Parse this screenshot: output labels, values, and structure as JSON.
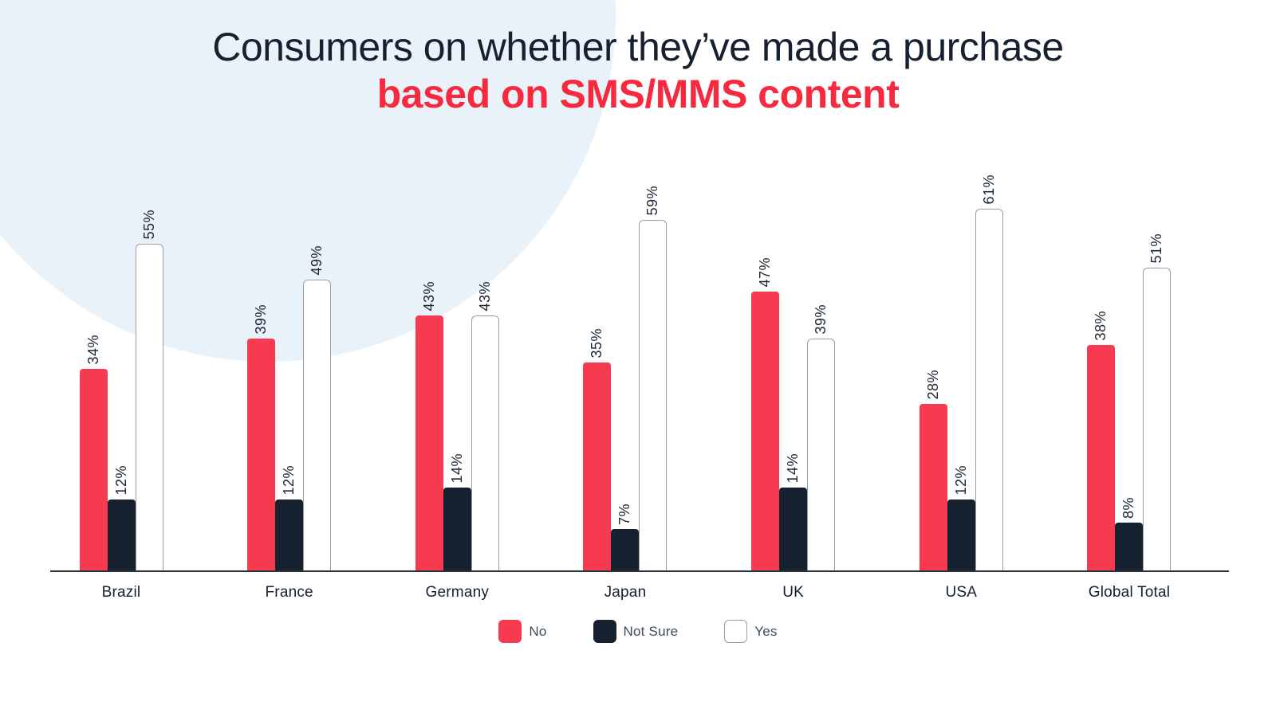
{
  "page": {
    "background_color": "#FFFFFF",
    "accent_circle_color": "#E9F2F9"
  },
  "title": {
    "line1": "Consumers on whether they’ve made a purchase",
    "line2": "based on SMS/MMS content",
    "line1_color": "#152030",
    "line2_color": "#F7293F"
  },
  "chart_data": {
    "type": "bar",
    "title": "Consumers on whether they've made a purchase based on SMS/MMS content",
    "categories": [
      "Brazil",
      "France",
      "Germany",
      "Japan",
      "UK",
      "USA",
      "Global Total"
    ],
    "series": [
      {
        "name": "No",
        "color": "#F63B50",
        "values": [
          34,
          39,
          43,
          35,
          47,
          28,
          38
        ]
      },
      {
        "name": "Not Sure",
        "color": "#16212F",
        "values": [
          12,
          12,
          14,
          7,
          14,
          12,
          8
        ]
      },
      {
        "name": "Yes",
        "color": "#FFFFFF",
        "border_color": "#999EA5",
        "values": [
          55,
          49,
          43,
          59,
          39,
          61,
          51
        ]
      }
    ],
    "value_suffix": "%",
    "value_label_rotation_deg": -90,
    "value_label_color": "#1B2735",
    "ylim": [
      0,
      65
    ],
    "gridlines": false,
    "y_axis_visible": false,
    "x_axis_line_color": "#2A323C",
    "category_label_color": "#14202E",
    "legend_position": "bottom"
  },
  "legend": {
    "items": [
      {
        "label": "No",
        "color": "#F63B50"
      },
      {
        "label": "Not Sure",
        "color": "#16212F"
      },
      {
        "label": "Yes",
        "color": "#FFFFFF",
        "border": "#999EA5"
      }
    ],
    "text_color": "#3E4A59"
  }
}
